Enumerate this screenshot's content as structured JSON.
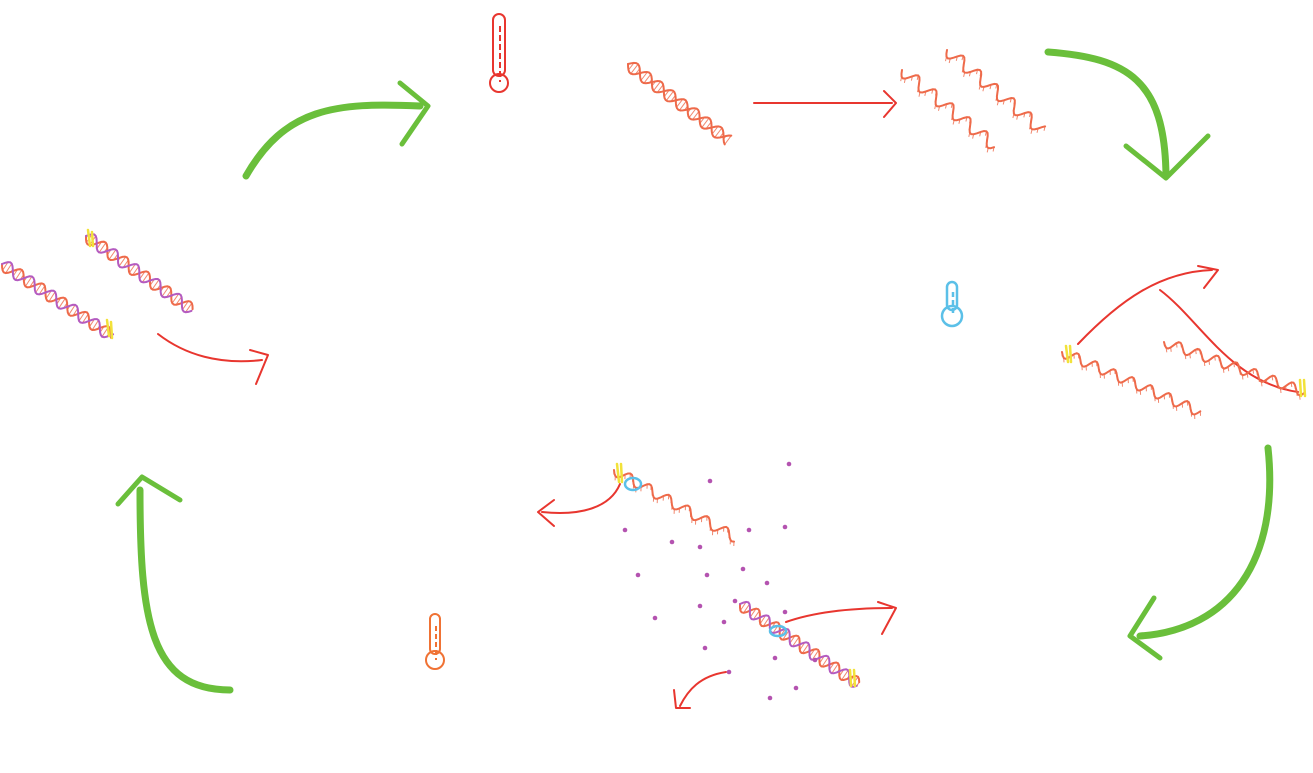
{
  "diagram": {
    "kind": "pcr-cycle-illustration",
    "colors": {
      "cycle_arrow": "#6abf3b",
      "step_arrow": "#e8362f",
      "dna_strand": "#ee6a4a",
      "dna_partner_strand": "#b45bc0",
      "primer": "#f2e23a",
      "polymerase": "#5bc0e8",
      "nucleotide": "#b453b0",
      "thermometer_hot": "#e8362f",
      "thermometer_cold": "#5bc0e8",
      "thermometer_warm": "#f07234"
    },
    "steps": [
      {
        "id": "denaturation",
        "icon": "thermometer-hot-icon"
      },
      {
        "id": "annealing",
        "icon": "thermometer-cold-icon"
      },
      {
        "id": "extension",
        "icon": "thermometer-warm-icon"
      }
    ],
    "nucleotide_count": 22
  }
}
